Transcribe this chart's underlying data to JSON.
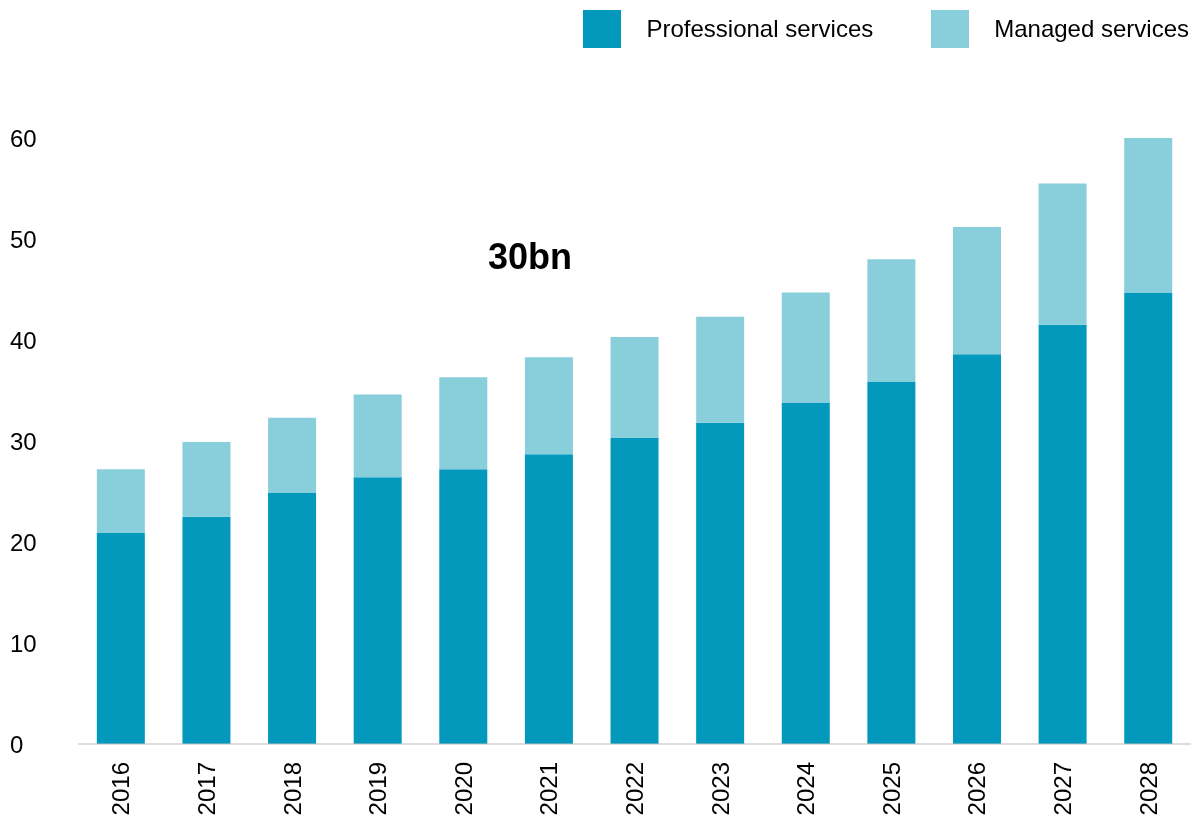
{
  "chart_data": {
    "type": "bar",
    "stacked": true,
    "categories": [
      "2016",
      "2017",
      "2018",
      "2019",
      "2020",
      "2021",
      "2022",
      "2023",
      "2024",
      "2025",
      "2026",
      "2027",
      "2028"
    ],
    "series": [
      {
        "name": "Professional services",
        "color": "#0299bd",
        "values": [
          20.9,
          22.5,
          24.9,
          26.4,
          27.2,
          28.7,
          30.3,
          31.8,
          33.8,
          35.9,
          38.6,
          41.5,
          44.7
        ]
      },
      {
        "name": "Managed services",
        "color": "#88cedb",
        "values": [
          6.3,
          7.4,
          7.4,
          8.2,
          9.1,
          9.6,
          10.0,
          10.5,
          10.9,
          12.1,
          12.6,
          14.0,
          15.5
        ]
      }
    ],
    "ylim": [
      0,
      60
    ],
    "yticks": [
      0,
      10,
      20,
      30,
      40,
      50,
      60
    ],
    "grid": false,
    "legend": "top right",
    "annotations": [
      "30bn"
    ]
  }
}
